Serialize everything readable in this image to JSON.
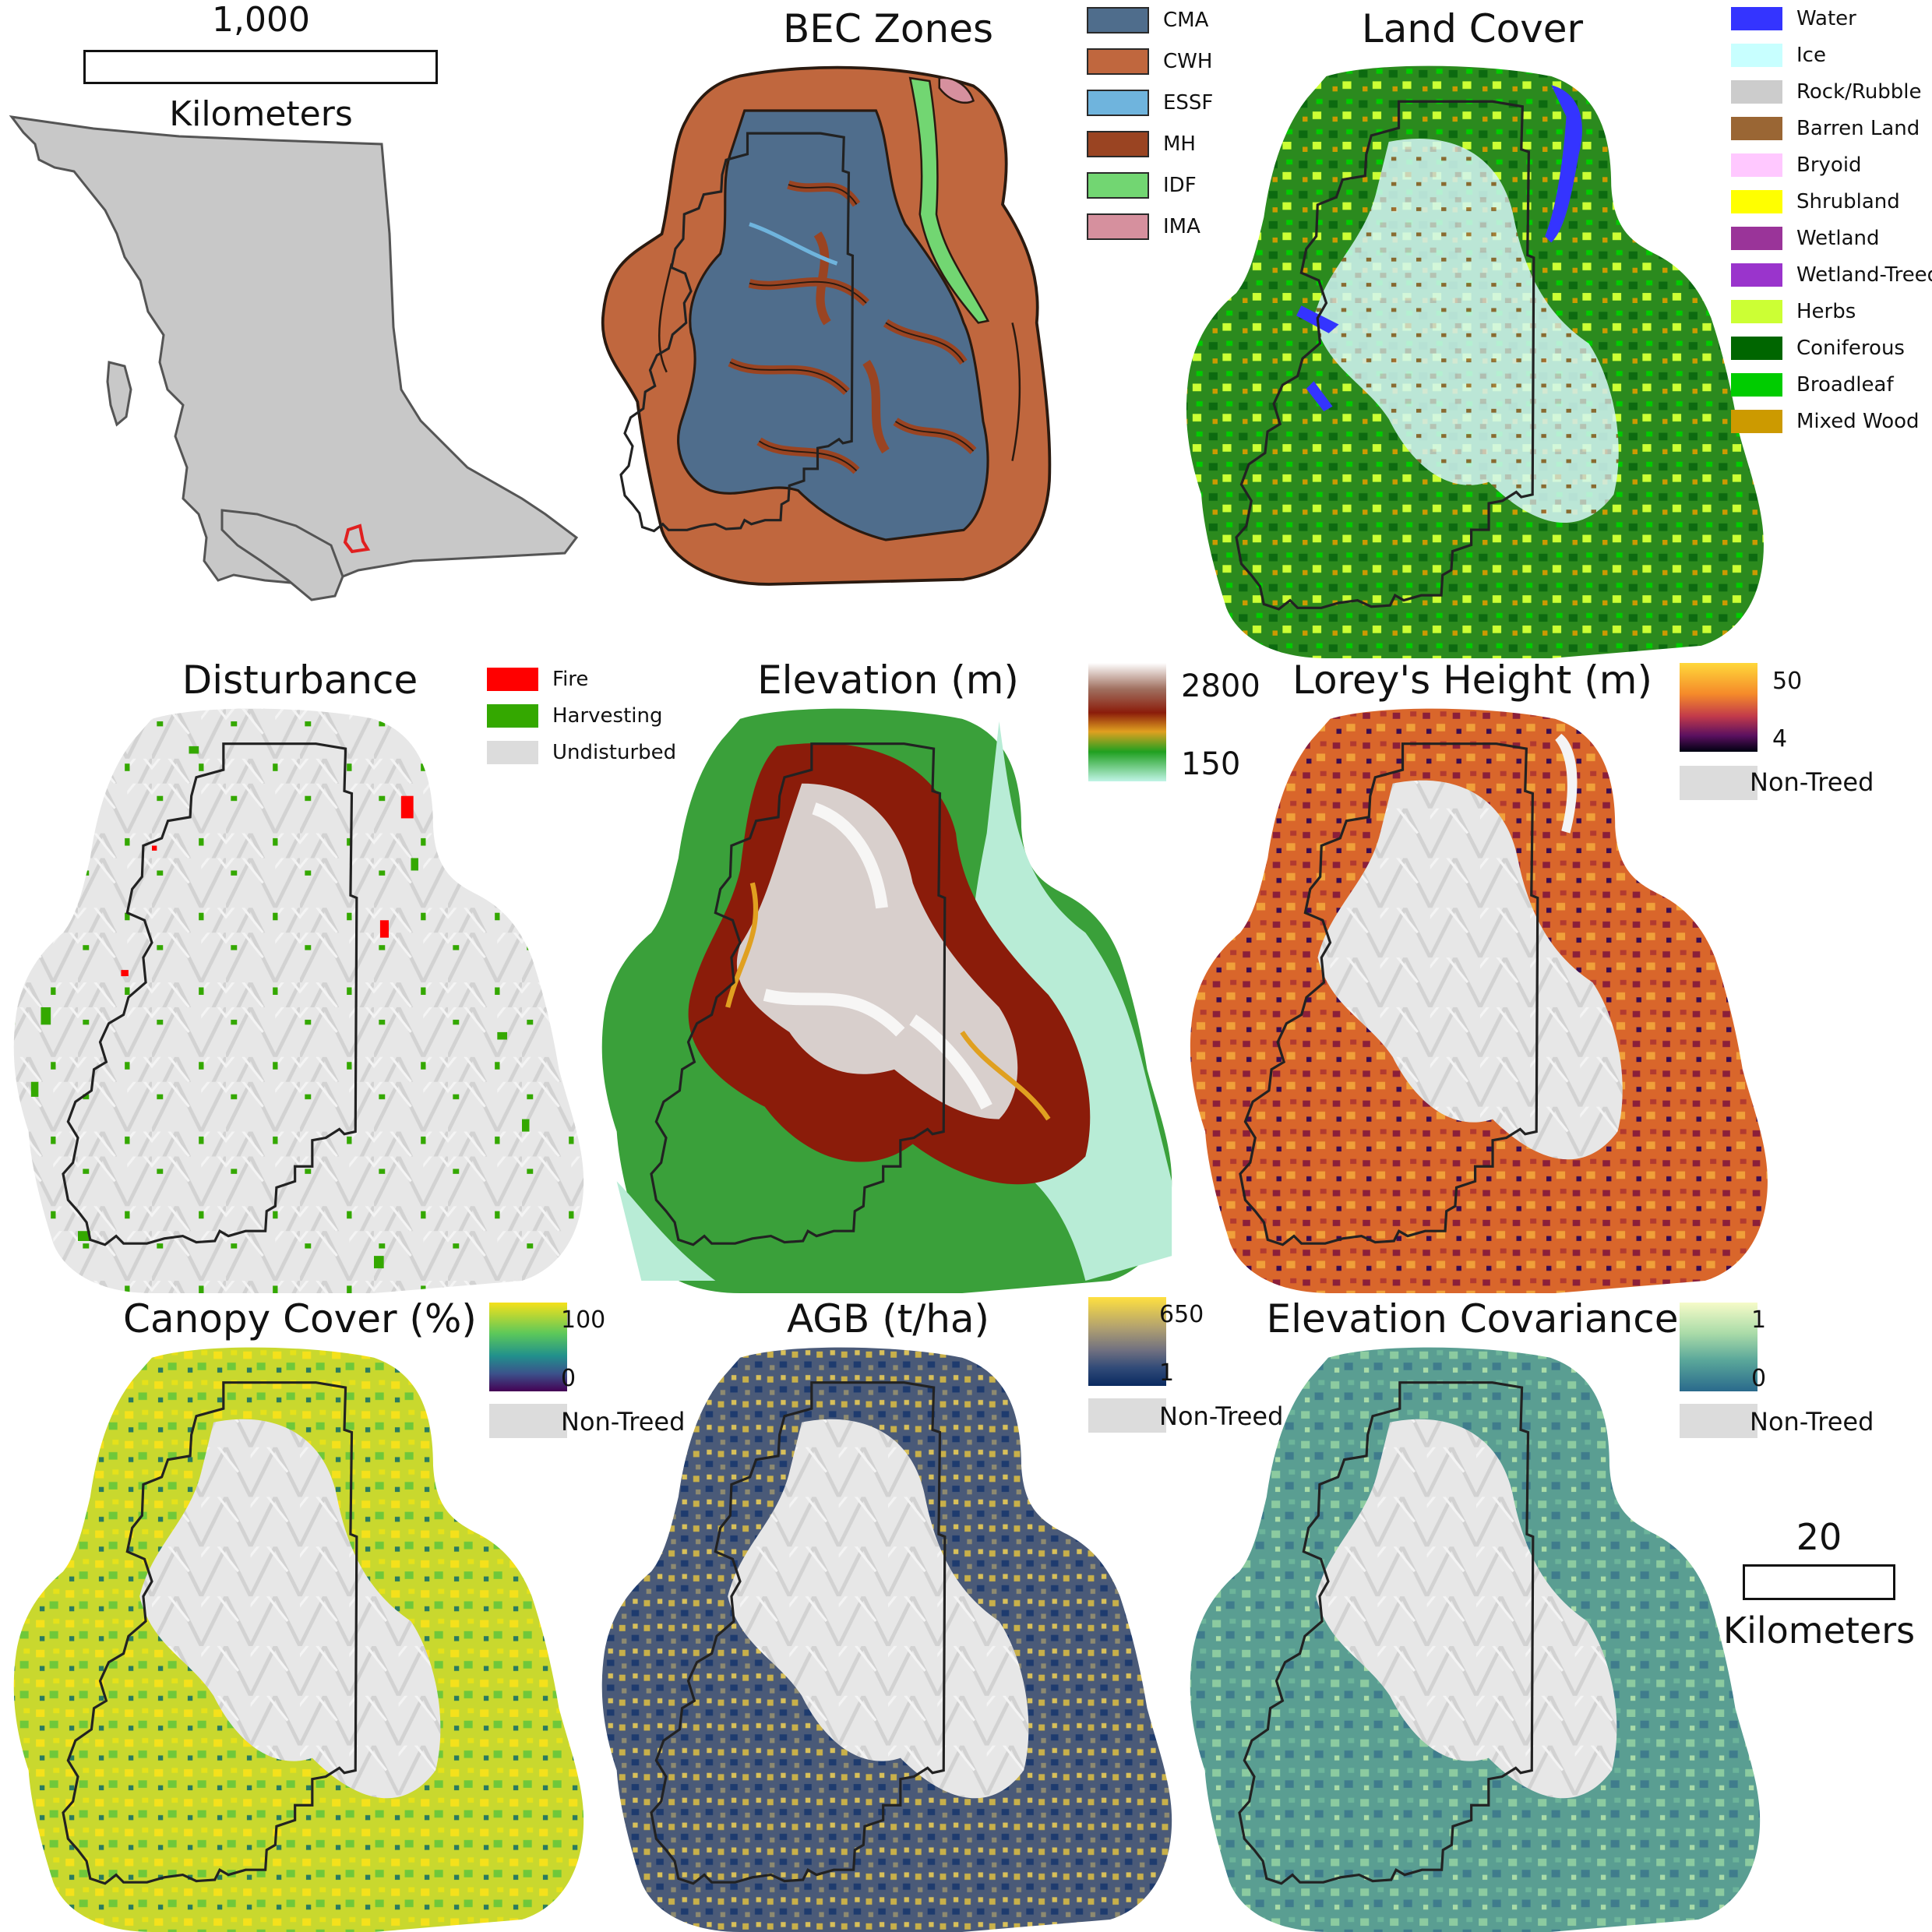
{
  "overview": {
    "scale_value": "1,000",
    "scale_unit": "Kilometers",
    "land_color": "#c8c8c8",
    "study_area_color": "#e02020"
  },
  "bec": {
    "title": "BEC Zones",
    "legend": [
      {
        "label": "CMA",
        "color": "#4f6d8c"
      },
      {
        "label": "CWH",
        "color": "#c0673e"
      },
      {
        "label": "ESSF",
        "color": "#6fb4dd"
      },
      {
        "label": "MH",
        "color": "#9a4422"
      },
      {
        "label": "IDF",
        "color": "#72d672"
      },
      {
        "label": "IMA",
        "color": "#d6909e"
      }
    ]
  },
  "landcover": {
    "title": "Land Cover",
    "legend": [
      {
        "label": "Water",
        "color": "#3434ff"
      },
      {
        "label": "Ice",
        "color": "#c8ffff"
      },
      {
        "label": "Rock/Rubble",
        "color": "#cccccc"
      },
      {
        "label": "Barren Land",
        "color": "#9a6634"
      },
      {
        "label": "Bryoid",
        "color": "#ffc8ff"
      },
      {
        "label": "Shrubland",
        "color": "#ffff00"
      },
      {
        "label": "Wetland",
        "color": "#9a3499"
      },
      {
        "label": "Wetland-Treed",
        "color": "#9a34cc"
      },
      {
        "label": "Herbs",
        "color": "#ccff34"
      },
      {
        "label": "Coniferous",
        "color": "#006600"
      },
      {
        "label": "Broadleaf",
        "color": "#00cc00"
      },
      {
        "label": "Mixed Wood",
        "color": "#cc9a00"
      }
    ]
  },
  "disturbance": {
    "title": "Disturbance",
    "legend": [
      {
        "label": "Fire",
        "color": "#ff0000"
      },
      {
        "label": "Harvesting",
        "color": "#34a800"
      },
      {
        "label": "Undisturbed",
        "color": "#dcdcdc"
      }
    ]
  },
  "elevation": {
    "title": "Elevation (m)",
    "max_label": "2800",
    "min_label": "150"
  },
  "loreys": {
    "title": "Lorey's Height (m)",
    "max_label": "50",
    "min_label": "4",
    "nontreed": "Non-Treed"
  },
  "canopy": {
    "title": "Canopy Cover (%)",
    "max_label": "100",
    "min_label": "0",
    "nontreed": "Non-Treed"
  },
  "agb": {
    "title": "AGB (t/ha)",
    "max_label": "650",
    "min_label": "1",
    "nontreed": "Non-Treed"
  },
  "elevcov": {
    "title": "Elevation Covariance",
    "max_label": "1",
    "min_label": "0",
    "nontreed": "Non-Treed"
  },
  "scalebar": {
    "value": "20",
    "unit": "Kilometers"
  }
}
